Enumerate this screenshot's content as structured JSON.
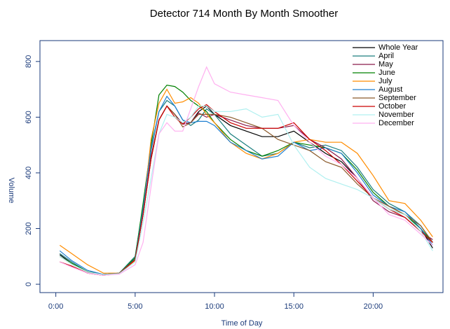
{
  "chart_data": {
    "type": "line",
    "title": "Detector 714 Month By Month Smoother",
    "x_label": "Time of Day",
    "y_label": "Volume",
    "xlim": [
      -1.0,
      24.4
    ],
    "ylim": [
      -30,
      875
    ],
    "xticks": [
      {
        "value": 0,
        "label": "0:00"
      },
      {
        "value": 5,
        "label": "5:00"
      },
      {
        "value": 10,
        "label": "10:00"
      },
      {
        "value": 15,
        "label": "15:00"
      },
      {
        "value": 20,
        "label": "20:00"
      }
    ],
    "yticks": [
      0,
      200,
      400,
      600,
      800
    ],
    "legend": "top-right",
    "x": [
      0.25,
      1,
      2,
      3,
      4,
      5,
      5.5,
      6,
      6.5,
      7,
      7.5,
      8,
      8.5,
      9,
      9.5,
      10,
      11,
      12,
      13,
      14,
      15,
      16,
      17,
      18,
      19,
      20,
      21,
      22,
      23,
      23.75
    ],
    "series": [
      {
        "name": "Whole Year",
        "color": "#000000",
        "values": [
          106,
          75,
          45,
          35,
          40,
          90,
          250,
          450,
          590,
          640,
          610,
          575,
          580,
          620,
          640,
          610,
          570,
          550,
          530,
          530,
          550,
          510,
          470,
          440,
          380,
          310,
          270,
          250,
          200,
          130
        ]
      },
      {
        "name": "April",
        "color": "#1a7f7f",
        "values": [
          110,
          80,
          45,
          35,
          40,
          100,
          280,
          480,
          620,
          660,
          640,
          590,
          570,
          590,
          630,
          610,
          540,
          500,
          460,
          470,
          510,
          490,
          500,
          480,
          420,
          340,
          290,
          260,
          210,
          150
        ]
      },
      {
        "name": "May",
        "color": "#8b1a4a",
        "values": [
          80,
          65,
          40,
          32,
          38,
          90,
          250,
          460,
          590,
          640,
          610,
          575,
          580,
          615,
          600,
          610,
          590,
          570,
          560,
          560,
          570,
          520,
          490,
          450,
          380,
          300,
          260,
          240,
          190,
          160
        ]
      },
      {
        "name": "June",
        "color": "#008000",
        "values": [
          100,
          75,
          45,
          35,
          40,
          95,
          290,
          500,
          680,
          715,
          710,
          690,
          660,
          640,
          620,
          580,
          520,
          480,
          460,
          480,
          510,
          500,
          490,
          470,
          410,
          330,
          280,
          250,
          200,
          150
        ]
      },
      {
        "name": "July",
        "color": "#ff8c00",
        "values": [
          140,
          110,
          70,
          40,
          40,
          85,
          260,
          520,
          650,
          700,
          650,
          655,
          670,
          650,
          610,
          580,
          510,
          470,
          450,
          470,
          510,
          520,
          510,
          510,
          470,
          390,
          300,
          290,
          230,
          170
        ]
      },
      {
        "name": "August",
        "color": "#1e7fd0",
        "values": [
          120,
          85,
          50,
          35,
          40,
          90,
          270,
          490,
          620,
          675,
          640,
          590,
          580,
          585,
          585,
          570,
          510,
          480,
          450,
          460,
          510,
          480,
          490,
          470,
          400,
          320,
          280,
          260,
          200,
          140
        ]
      },
      {
        "name": "September",
        "color": "#8b5a2b",
        "values": [
          100,
          72,
          44,
          34,
          40,
          88,
          250,
          450,
          590,
          640,
          610,
          565,
          580,
          610,
          610,
          610,
          600,
          580,
          560,
          520,
          500,
          480,
          440,
          420,
          360,
          310,
          280,
          250,
          210,
          150
        ]
      },
      {
        "name": "October",
        "color": "#cc0000",
        "values": [
          80,
          65,
          40,
          32,
          38,
          88,
          250,
          450,
          590,
          640,
          600,
          575,
          600,
          630,
          645,
          620,
          580,
          560,
          560,
          560,
          580,
          520,
          480,
          430,
          370,
          310,
          270,
          240,
          190,
          150
        ]
      },
      {
        "name": "November",
        "color": "#b0f0f0",
        "values": [
          100,
          72,
          44,
          34,
          38,
          80,
          220,
          380,
          540,
          610,
          600,
          580,
          600,
          640,
          640,
          620,
          620,
          630,
          600,
          610,
          500,
          420,
          380,
          360,
          340,
          310,
          270,
          250,
          190,
          120
        ]
      },
      {
        "name": "December",
        "color": "#ffb0f0",
        "values": [
          80,
          62,
          40,
          32,
          36,
          70,
          150,
          350,
          540,
          580,
          550,
          550,
          630,
          710,
          780,
          720,
          690,
          680,
          670,
          660,
          570,
          510,
          460,
          430,
          380,
          310,
          250,
          230,
          180,
          140
        ]
      }
    ]
  }
}
